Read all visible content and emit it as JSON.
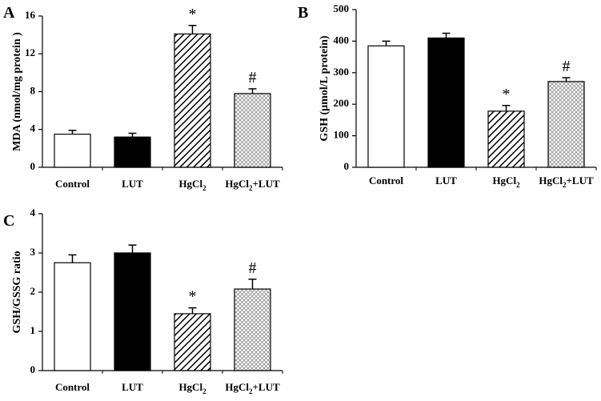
{
  "chart_data": [
    {
      "panel": "A",
      "type": "bar",
      "ylabel": "MDA (nmol/mg protein )",
      "ylim": [
        0,
        16
      ],
      "yticks": [
        "0",
        "4",
        "8",
        "12",
        "16"
      ],
      "categories": [
        {
          "main": "Control",
          "sub": "",
          "tail": ""
        },
        {
          "main": "LUT",
          "sub": "",
          "tail": ""
        },
        {
          "main": "HgCl",
          "sub": "2",
          "tail": ""
        },
        {
          "main": "HgCl",
          "sub": "2",
          "tail": "+LUT"
        }
      ],
      "values": [
        3.5,
        3.2,
        14.1,
        7.8
      ],
      "errors": [
        0.4,
        0.4,
        0.9,
        0.5
      ],
      "fills": [
        "white",
        "black",
        "diagonal-hatch",
        "crosshatch-dots"
      ],
      "annotations": [
        "",
        "",
        "*",
        "#"
      ]
    },
    {
      "panel": "B",
      "type": "bar",
      "ylabel": "GSH (μmol/L protein)",
      "ylim": [
        0,
        500
      ],
      "yticks": [
        "0",
        "100",
        "200",
        "300",
        "400",
        "500"
      ],
      "categories": [
        {
          "main": "Control",
          "sub": "",
          "tail": ""
        },
        {
          "main": "LUT",
          "sub": "",
          "tail": ""
        },
        {
          "main": "HgCl",
          "sub": "2",
          "tail": ""
        },
        {
          "main": "HgCl",
          "sub": "2",
          "tail": "+LUT"
        }
      ],
      "values": [
        385,
        410,
        178,
        272
      ],
      "errors": [
        15,
        15,
        18,
        12
      ],
      "fills": [
        "white",
        "black",
        "diagonal-hatch",
        "crosshatch-dots"
      ],
      "annotations": [
        "",
        "",
        "*",
        "#"
      ]
    },
    {
      "panel": "C",
      "type": "bar",
      "ylabel": "GSH/GSSG ratio",
      "ylim": [
        0,
        4
      ],
      "yticks": [
        "0",
        "1",
        "2",
        "3",
        "4"
      ],
      "categories": [
        {
          "main": "Control",
          "sub": "",
          "tail": ""
        },
        {
          "main": "LUT",
          "sub": "",
          "tail": ""
        },
        {
          "main": "HgCl",
          "sub": "2",
          "tail": ""
        },
        {
          "main": "HgCl",
          "sub": "2",
          "tail": "+LUT"
        }
      ],
      "values": [
        2.75,
        3.0,
        1.45,
        2.08
      ],
      "errors": [
        0.2,
        0.2,
        0.15,
        0.25
      ],
      "fills": [
        "white",
        "black",
        "diagonal-hatch",
        "crosshatch-dots"
      ],
      "annotations": [
        "",
        "",
        "*",
        "#"
      ]
    }
  ]
}
